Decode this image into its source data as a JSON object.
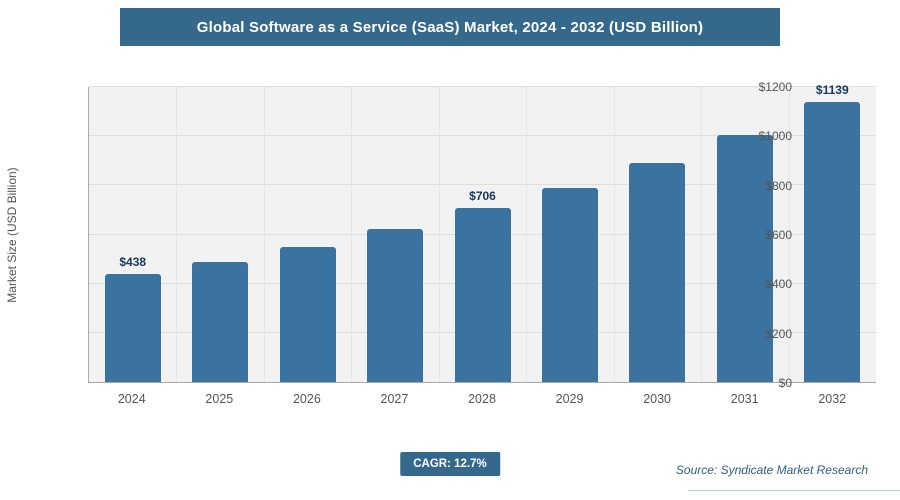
{
  "header": {
    "title": "Global Software as a Service (SaaS) Market, 2024 - 2032 (USD Billion)"
  },
  "chart_data": {
    "type": "bar",
    "title": "Global Software as a Service (SaaS) Market, 2024 - 2032 (USD Billion)",
    "categories": [
      "2024",
      "2025",
      "2026",
      "2027",
      "2028",
      "2029",
      "2030",
      "2031",
      "2032"
    ],
    "values": [
      438,
      490,
      551,
      622,
      706,
      790,
      890,
      1005,
      1139
    ],
    "point_labels": [
      "$438",
      "",
      "",
      "",
      "$706",
      "",
      "",
      "",
      "$1139"
    ],
    "xlabel": "",
    "ylabel": "Market Size (USD Billion)",
    "ylim": [
      0,
      1200
    ],
    "y_ticks": [
      0,
      200,
      400,
      600,
      800,
      1000,
      1200
    ],
    "y_tick_labels": [
      "$0",
      "$200",
      "$400",
      "$600",
      "$800",
      "$1000",
      "$1200"
    ],
    "grid": true,
    "legend": "none",
    "bar_color": "#3a739f",
    "banner_color": "#35698c"
  },
  "footer": {
    "cagr": "CAGR: 12.7%",
    "source": "Source: Syndicate Market Research"
  }
}
